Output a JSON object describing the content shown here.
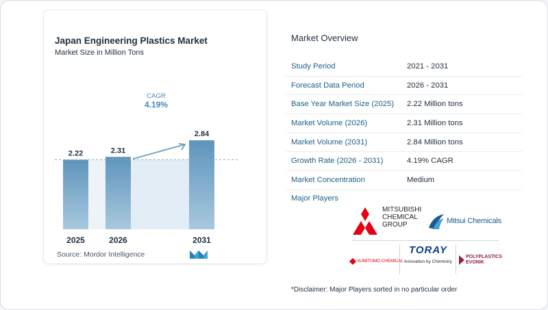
{
  "chart": {
    "title": "Japan Engineering Plastics Market",
    "subtitle": "Market Size in Million Tons",
    "source": "Source:  Mordor Intelligence",
    "cagr_label": "CAGR",
    "cagr_value": "4.19%"
  },
  "chart_data": {
    "type": "bar",
    "categories": [
      "2025",
      "2026",
      "2031"
    ],
    "values": [
      2.22,
      2.31,
      2.84
    ],
    "value_labels": [
      "2.22",
      "2.31",
      "2.84"
    ],
    "title": "Japan Engineering Plastics Market",
    "subtitle": "Market Size in Million Tons",
    "xlabel": "",
    "ylabel": "",
    "ylim": [
      0,
      3.0
    ],
    "annotations": [
      {
        "text": "CAGR 4.19%",
        "from": "2026",
        "to": "2031"
      }
    ],
    "colors": {
      "bar": "#5e95bc",
      "bar_light": "#a8c8de",
      "shade": "#e3edf5",
      "arrow": "#6d9dbd",
      "text": "#1f2d3d",
      "cagr_text": "#4a86ad"
    }
  },
  "overview": {
    "title": "Market Overview",
    "rows": [
      {
        "label": "Study Period",
        "value": "2021 - 2031"
      },
      {
        "label": "Forecast Data Period",
        "value": "2026 - 2031"
      },
      {
        "label": "Base Year Market Size (2025)",
        "value": "2.22 Million tons"
      },
      {
        "label": "Market Volume (2026)",
        "value": "2.31 Million tons"
      },
      {
        "label": "Market Volume (2031)",
        "value": "2.84 Million tons"
      },
      {
        "label": "Growth Rate (2026 - 2031)",
        "value": "4.19% CAGR"
      },
      {
        "label": "Market Concentration",
        "value": "Medium"
      }
    ],
    "players_label": "Major Players",
    "players": {
      "mcg": [
        "MITSUBISHI",
        "CHEMICAL",
        "GROUP"
      ],
      "mitsui": "Mitsui Chemicals",
      "sumitomo": "SUMITOMO CHEMICAL",
      "toray": "TORAY",
      "toray_tagline": "Innovation by Chemistry",
      "poly": [
        "POLYPLASTICS",
        "EVONIK"
      ]
    },
    "disclaimer": "*Disclaimer: Major Players sorted in no particular order"
  },
  "colors": {
    "label_blue": "#1b5f85",
    "red": "#e60012",
    "mitsui_blue": "#1c5a92",
    "toray_blue": "#0d3c8c"
  }
}
